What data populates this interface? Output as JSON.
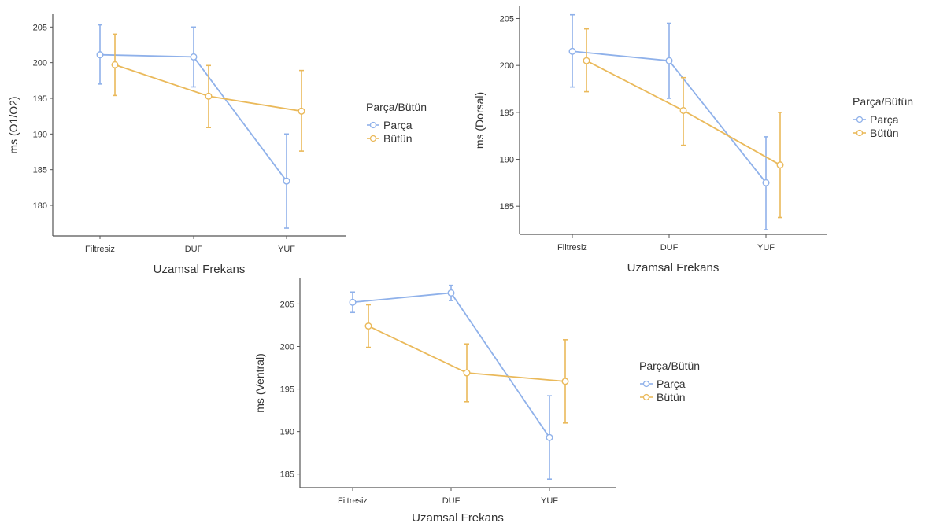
{
  "colors": {
    "parca": "#8fb1ea",
    "butun": "#eab95a",
    "axis": "#555555",
    "text": "#333333"
  },
  "chart_data": [
    {
      "type": "line",
      "title": "",
      "xlabel": "Uzamsal Frekans",
      "ylabel": "ms (O1/O2)",
      "categories": [
        "Filtresiz",
        "DUF",
        "YUF"
      ],
      "yticks": [
        180,
        185,
        190,
        195,
        200,
        205
      ],
      "ylim": [
        175.7,
        206.8
      ],
      "legend": {
        "title": "Parça/Bütün",
        "position": "right"
      },
      "series": [
        {
          "name": "Parça",
          "values": [
            201.1,
            200.8,
            183.4
          ],
          "lower": [
            197.0,
            196.6,
            176.8
          ],
          "upper": [
            205.3,
            205.0,
            190.0
          ]
        },
        {
          "name": "Bütün",
          "values": [
            199.7,
            195.3,
            193.2
          ],
          "lower": [
            195.4,
            190.9,
            187.6
          ],
          "upper": [
            204.0,
            199.6,
            198.9
          ]
        }
      ]
    },
    {
      "type": "line",
      "title": "",
      "xlabel": "Uzamsal Frekans",
      "ylabel": "ms (Dorsal)",
      "categories": [
        "Filtresiz",
        "DUF",
        "YUF"
      ],
      "yticks": [
        185,
        190,
        195,
        200,
        205
      ],
      "ylim": [
        182.0,
        206.3
      ],
      "legend": {
        "title": "Parça/Bütün",
        "position": "right"
      },
      "series": [
        {
          "name": "Parça",
          "values": [
            201.5,
            200.5,
            187.5
          ],
          "lower": [
            197.7,
            196.5,
            182.5
          ],
          "upper": [
            205.4,
            204.5,
            192.4
          ]
        },
        {
          "name": "Bütün",
          "values": [
            200.5,
            195.2,
            189.4
          ],
          "lower": [
            197.2,
            191.5,
            183.8
          ],
          "upper": [
            203.9,
            198.7,
            195.0
          ]
        }
      ]
    },
    {
      "type": "line",
      "title": "",
      "xlabel": "Uzamsal Frekans",
      "ylabel": "ms (Ventral)",
      "categories": [
        "Filtresiz",
        "DUF",
        "YUF"
      ],
      "yticks": [
        185,
        190,
        195,
        200,
        205
      ],
      "ylim": [
        183.4,
        208.0
      ],
      "legend": {
        "title": "Parça/Bütün",
        "position": "right"
      },
      "series": [
        {
          "name": "Parça",
          "values": [
            205.2,
            206.3,
            189.3
          ],
          "lower": [
            204.0,
            205.4,
            184.4
          ],
          "upper": [
            206.4,
            207.2,
            194.2
          ]
        },
        {
          "name": "Bütün",
          "values": [
            202.4,
            196.9,
            195.9
          ],
          "lower": [
            199.9,
            193.5,
            191.0
          ],
          "upper": [
            204.9,
            200.3,
            200.8
          ]
        }
      ]
    }
  ]
}
